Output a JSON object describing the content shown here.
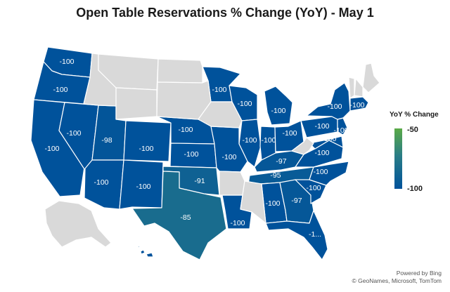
{
  "title": "Open Table Reservations % Change (YoY) - May 1",
  "legend": {
    "title": "YoY % Change",
    "max_label": "-50",
    "min_label": "-100",
    "max_color": "#5aaa46",
    "mid_color": "#2a7d86",
    "min_color": "#00529b"
  },
  "credits": {
    "line1": "Powered by Bing",
    "line2": "© GeoNames, Microsoft, TomTom"
  },
  "colors": {
    "no_data": "#d9d9d9",
    "border": "#ffffff",
    "label": "#ffffff"
  },
  "chart_data": {
    "type": "choropleth",
    "metric": "YoY % Change",
    "range": [
      -100,
      -50
    ],
    "states": [
      {
        "name": "Washington",
        "value": -100,
        "label": "-100"
      },
      {
        "name": "Oregon",
        "value": -100,
        "label": "-100"
      },
      {
        "name": "California",
        "value": -100,
        "label": "-100"
      },
      {
        "name": "Nevada",
        "value": -100,
        "label": "-100"
      },
      {
        "name": "Utah",
        "value": -98,
        "label": "-98"
      },
      {
        "name": "Arizona",
        "value": -100,
        "label": "-100"
      },
      {
        "name": "Colorado",
        "value": -100,
        "label": "-100"
      },
      {
        "name": "New Mexico",
        "value": -100,
        "label": "-100"
      },
      {
        "name": "Nebraska",
        "value": -100,
        "label": "-100"
      },
      {
        "name": "Kansas",
        "value": -100,
        "label": "-100"
      },
      {
        "name": "Oklahoma",
        "value": -91,
        "label": "-91"
      },
      {
        "name": "Texas",
        "value": -85,
        "label": "-85"
      },
      {
        "name": "Minnesota",
        "value": -100,
        "label": "-100"
      },
      {
        "name": "Wisconsin",
        "value": -100,
        "label": "-100"
      },
      {
        "name": "Illinois",
        "value": -100,
        "label": "-100"
      },
      {
        "name": "Missouri",
        "value": -100,
        "label": "-100"
      },
      {
        "name": "Michigan",
        "value": -100,
        "label": "-100"
      },
      {
        "name": "Indiana",
        "value": -100,
        "label": "-100"
      },
      {
        "name": "Ohio",
        "value": -100,
        "label": "-100"
      },
      {
        "name": "Kentucky",
        "value": -97,
        "label": "-97"
      },
      {
        "name": "Tennessee",
        "value": -95,
        "label": "-95"
      },
      {
        "name": "Louisiana",
        "value": -100,
        "label": "-100"
      },
      {
        "name": "Alabama",
        "value": -100,
        "label": "-100"
      },
      {
        "name": "Georgia",
        "value": -97,
        "label": "-97"
      },
      {
        "name": "Florida",
        "value": -100,
        "label": "-1..."
      },
      {
        "name": "South Carolina",
        "value": -100,
        "label": "-100"
      },
      {
        "name": "North Carolina",
        "value": -100,
        "label": "-100"
      },
      {
        "name": "Virginia",
        "value": -100,
        "label": "-100"
      },
      {
        "name": "Maryland",
        "value": -100,
        "label": "-100"
      },
      {
        "name": "Pennsylvania",
        "value": -100,
        "label": "-100"
      },
      {
        "name": "New Jersey",
        "value": -100,
        "label": "-100"
      },
      {
        "name": "New York",
        "value": -100,
        "label": "-100"
      },
      {
        "name": "Massachusetts",
        "value": -100,
        "label": "-100"
      },
      {
        "name": "Hawaii",
        "value": -100,
        "label": ""
      },
      {
        "name": "Idaho",
        "value": null,
        "label": ""
      },
      {
        "name": "Montana",
        "value": null,
        "label": ""
      },
      {
        "name": "Wyoming",
        "value": null,
        "label": ""
      },
      {
        "name": "North Dakota",
        "value": null,
        "label": ""
      },
      {
        "name": "South Dakota",
        "value": null,
        "label": ""
      },
      {
        "name": "Iowa",
        "value": null,
        "label": ""
      },
      {
        "name": "Arkansas",
        "value": null,
        "label": ""
      },
      {
        "name": "Mississippi",
        "value": null,
        "label": ""
      },
      {
        "name": "West Virginia",
        "value": null,
        "label": ""
      },
      {
        "name": "Maine",
        "value": null,
        "label": ""
      },
      {
        "name": "Vermont",
        "value": null,
        "label": ""
      },
      {
        "name": "New Hampshire",
        "value": null,
        "label": ""
      },
      {
        "name": "Alaska",
        "value": null,
        "label": ""
      }
    ]
  }
}
